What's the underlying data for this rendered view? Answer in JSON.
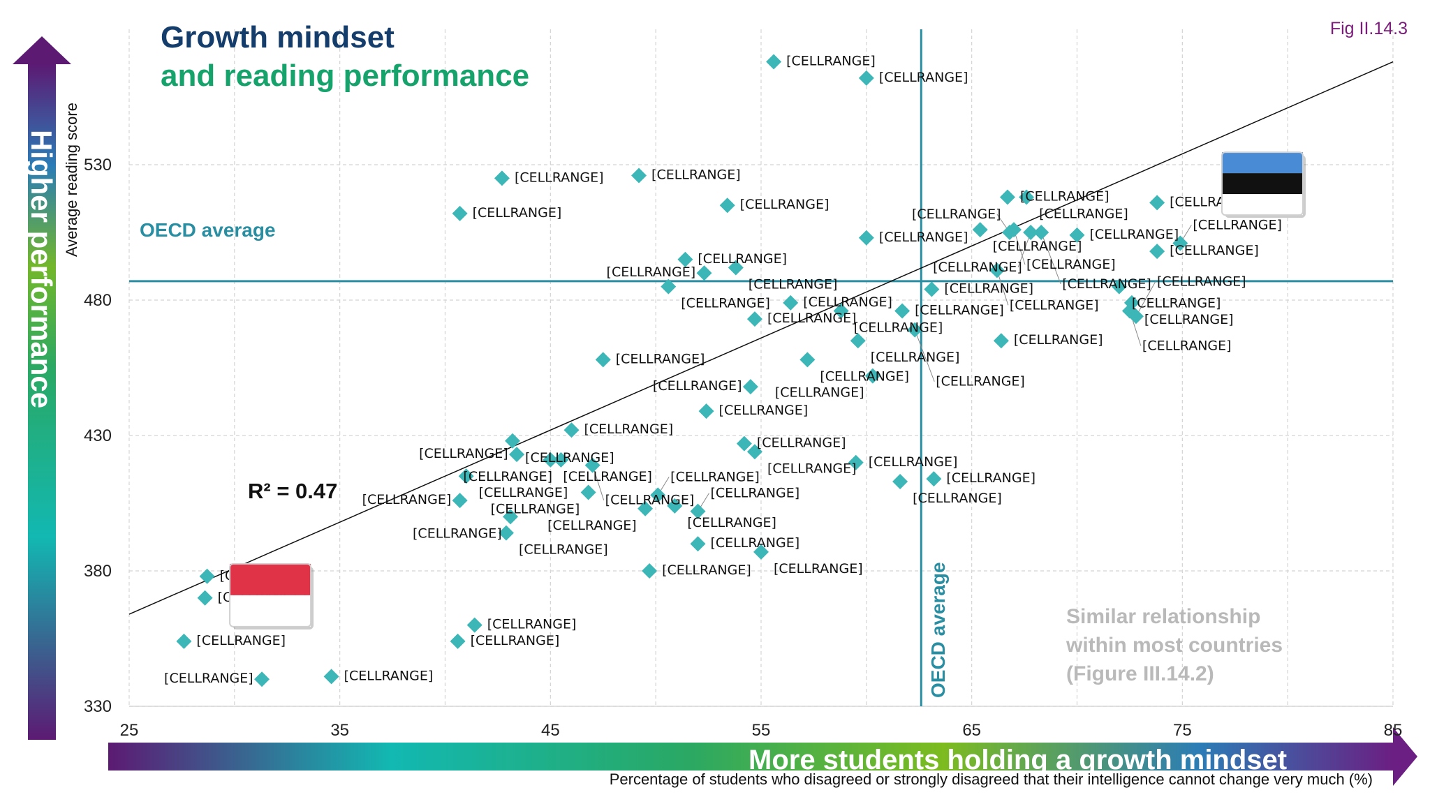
{
  "title": {
    "line1": "Growth mindset",
    "line2": "and reading performance",
    "line1_color": "#143d6b",
    "line2_color": "#16a36b"
  },
  "figure_ref": "Fig II.14.3",
  "figure_ref_color": "#7a1c7a",
  "side_label": "Higher performance",
  "bottom_label": "More students holding a growth mindset",
  "oecd_average_label_h": "OECD average",
  "oecd_average_label_v": "OECD average",
  "oecd_color": "#2a8ea2",
  "point_color": "#3cb6b6",
  "note": {
    "line1": "Similar relationship",
    "line2": "within most countries",
    "line3": "(Figure III.14.2)"
  },
  "chart_data": {
    "type": "scatter",
    "title": "Growth mindset and reading performance",
    "xlabel": "Percentage of students who disagreed or strongly disagreed that their intelligence cannot change very much (%)",
    "ylabel": "Average reading score",
    "xlim": [
      25,
      85
    ],
    "ylim": [
      330,
      580
    ],
    "xticks": [
      25,
      35,
      45,
      55,
      65,
      75,
      85
    ],
    "yticks": [
      330,
      380,
      430,
      480,
      530
    ],
    "oecd_average": {
      "x": 62.6,
      "y": 487
    },
    "trendline": {
      "r2_label": "R² = 0.47",
      "x": [
        25,
        85
      ],
      "y": [
        364,
        568
      ]
    },
    "flags": [
      {
        "name": "indonesia-flag",
        "x": 31.7,
        "y": 371,
        "stripes": [
          "#e03348",
          "#ffffff"
        ]
      },
      {
        "name": "estonia-flag",
        "x": 78.8,
        "y": 523,
        "stripes": [
          "#4a8bd6",
          "#111111",
          "#ffffff"
        ]
      }
    ],
    "points": [
      {
        "x": 55.6,
        "y": 568,
        "label": "[CELLRANGE]"
      },
      {
        "x": 60.0,
        "y": 562,
        "label": "[CELLRANGE]"
      },
      {
        "x": 42.7,
        "y": 525,
        "label": "[CELLRANGE]"
      },
      {
        "x": 49.2,
        "y": 526,
        "label": "[CELLRANGE]"
      },
      {
        "x": 40.7,
        "y": 512,
        "label": "[CELLRANGE]"
      },
      {
        "x": 53.4,
        "y": 515,
        "label": "[CELLRANGE]"
      },
      {
        "x": 60.0,
        "y": 503,
        "label": "[CELLRANGE]"
      },
      {
        "x": 51.4,
        "y": 495,
        "label": "[CELLRANGE]"
      },
      {
        "x": 53.8,
        "y": 492,
        "label": "[CELLRANGE]"
      },
      {
        "x": 52.3,
        "y": 490,
        "label": "[CELLRANGE]"
      },
      {
        "x": 50.6,
        "y": 485,
        "label": "[CELLRANGE]"
      },
      {
        "x": 56.4,
        "y": 479,
        "label": "[CELLRANGE]"
      },
      {
        "x": 54.7,
        "y": 473,
        "label": "[CELLRANGE]"
      },
      {
        "x": 58.8,
        "y": 476,
        "label": "[CELLRANGE]"
      },
      {
        "x": 61.7,
        "y": 476,
        "label": "[CELLRANGE]"
      },
      {
        "x": 59.6,
        "y": 465,
        "label": "[CELLRANGE]"
      },
      {
        "x": 62.3,
        "y": 469,
        "label": "[CELLRANGE]"
      },
      {
        "x": 66.4,
        "y": 465,
        "label": "[CELLRANGE]"
      },
      {
        "x": 63.1,
        "y": 484,
        "label": "[CELLRANGE]"
      },
      {
        "x": 57.2,
        "y": 458,
        "label": "[CELLRANGE]"
      },
      {
        "x": 60.3,
        "y": 452,
        "label": "[CELLRANGE]"
      },
      {
        "x": 47.5,
        "y": 458,
        "label": "[CELLRANGE]"
      },
      {
        "x": 54.5,
        "y": 448,
        "label": "[CELLRANGE]"
      },
      {
        "x": 52.4,
        "y": 439,
        "label": "[CELLRANGE]"
      },
      {
        "x": 46.0,
        "y": 432,
        "label": "[CELLRANGE]"
      },
      {
        "x": 43.2,
        "y": 428,
        "label": "[CELLRANGE]"
      },
      {
        "x": 43.4,
        "y": 423,
        "label": "[CELLRANGE]"
      },
      {
        "x": 45.0,
        "y": 421,
        "label": "[CELLRANGE]"
      },
      {
        "x": 45.5,
        "y": 421,
        "label": "[CELLRANGE]"
      },
      {
        "x": 47.0,
        "y": 419,
        "label": "[CELLRANGE]"
      },
      {
        "x": 54.2,
        "y": 427,
        "label": "[CELLRANGE]"
      },
      {
        "x": 54.7,
        "y": 424,
        "label": "[CELLRANGE]"
      },
      {
        "x": 41.0,
        "y": 415,
        "label": "[CELLRANGE]"
      },
      {
        "x": 59.5,
        "y": 420,
        "label": "[CELLRANGE]"
      },
      {
        "x": 63.2,
        "y": 414,
        "label": "[CELLRANGE]"
      },
      {
        "x": 61.6,
        "y": 413,
        "label": "[CELLRANGE]"
      },
      {
        "x": 46.8,
        "y": 409,
        "label": "[CELLRANGE]"
      },
      {
        "x": 40.7,
        "y": 406,
        "label": "[CELLRANGE]"
      },
      {
        "x": 50.1,
        "y": 408,
        "label": "[CELLRANGE]"
      },
      {
        "x": 50.9,
        "y": 404,
        "label": "[CELLRANGE]"
      },
      {
        "x": 49.5,
        "y": 403,
        "label": "[CELLRANGE]"
      },
      {
        "x": 52.0,
        "y": 402,
        "label": "[CELLRANGE]"
      },
      {
        "x": 43.1,
        "y": 400,
        "label": "[CELLRANGE]"
      },
      {
        "x": 42.9,
        "y": 394,
        "label": "[CELLRANGE]"
      },
      {
        "x": 52.0,
        "y": 390,
        "label": "[CELLRANGE]"
      },
      {
        "x": 55.0,
        "y": 387,
        "label": "[CELLRANGE]"
      },
      {
        "x": 49.7,
        "y": 380,
        "label": "[CELLRANGE]"
      },
      {
        "x": 41.4,
        "y": 360,
        "label": "[CELLRANGE]"
      },
      {
        "x": 40.6,
        "y": 354,
        "label": "[CELLRANGE]"
      },
      {
        "x": 27.6,
        "y": 354,
        "label": "[CELLRANGE]"
      },
      {
        "x": 34.6,
        "y": 341,
        "label": "[CELLRANGE]"
      },
      {
        "x": 31.3,
        "y": 340,
        "label": "[CELLRANGE]"
      },
      {
        "x": 28.7,
        "y": 378,
        "label": "[CELLRANGE]"
      },
      {
        "x": 28.6,
        "y": 370,
        "label": "[CELLRANGE]"
      },
      {
        "x": 66.7,
        "y": 518,
        "label": "[CELLRANGE]"
      },
      {
        "x": 67.6,
        "y": 518,
        "label": "[CELLRANGE]"
      },
      {
        "x": 65.4,
        "y": 506,
        "label": "[CELLRANGE]"
      },
      {
        "x": 66.8,
        "y": 505,
        "label": "[CELLRANGE]"
      },
      {
        "x": 67.0,
        "y": 506,
        "label": "[CELLRANGE]"
      },
      {
        "x": 67.8,
        "y": 505,
        "label": "[CELLRANGE]"
      },
      {
        "x": 68.3,
        "y": 505,
        "label": "[CELLRANGE]"
      },
      {
        "x": 70.0,
        "y": 504,
        "label": "[CELLRANGE]"
      },
      {
        "x": 73.8,
        "y": 516,
        "label": "[CELLRANGE]"
      },
      {
        "x": 73.8,
        "y": 498,
        "label": "[CELLRANGE]"
      },
      {
        "x": 74.9,
        "y": 501,
        "label": "[CELLRANGE]"
      },
      {
        "x": 66.2,
        "y": 491,
        "label": "[CELLRANGE]"
      },
      {
        "x": 72.0,
        "y": 485,
        "label": "[CELLRANGE]"
      },
      {
        "x": 72.6,
        "y": 479,
        "label": "[CELLRANGE]"
      },
      {
        "x": 72.5,
        "y": 476,
        "label": "[CELLRANGE]"
      },
      {
        "x": 72.8,
        "y": 474,
        "label": "[CELLRANGE]"
      }
    ]
  }
}
